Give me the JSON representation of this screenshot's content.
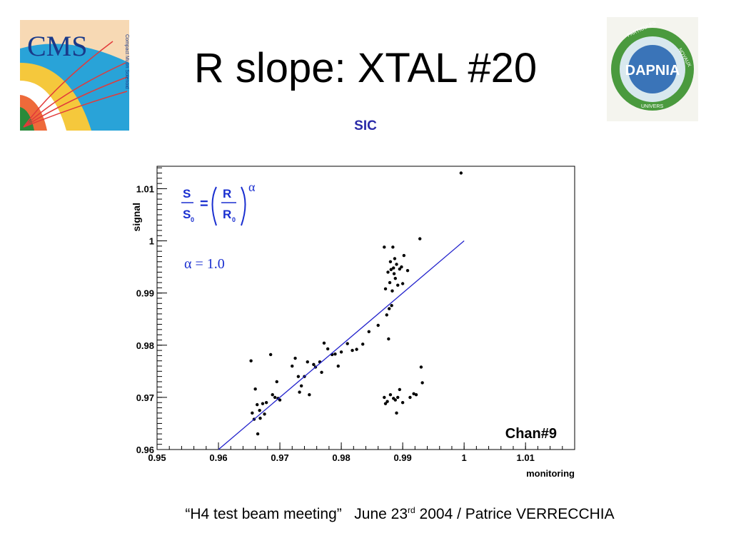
{
  "slide": {
    "title": "R slope: XTAL #20",
    "subtitle": "SIC",
    "footer_quote": "“H4 test beam meeting”",
    "footer_date_day": "June 23",
    "footer_date_sup": "rd",
    "footer_rest": " 2004 / Patrice VERRECCHIA"
  },
  "logos": {
    "cms": {
      "text": "CMS",
      "subtext": "Compact Muon Solenoid"
    },
    "dapnia": {
      "text": "DAPNIA",
      "ring_top": "PARTICULES",
      "ring_right": "NOYAUX",
      "ring_bottom": "UNIVERS"
    }
  },
  "chart_data": {
    "type": "scatter",
    "xlabel": "monitoring",
    "ylabel": "signal",
    "xlim": [
      0.95,
      1.018
    ],
    "ylim": [
      0.96,
      1.0143
    ],
    "xticks": [
      0.95,
      0.96,
      0.97,
      0.98,
      0.99,
      1,
      1.01
    ],
    "xtick_labels": [
      "0.95",
      "0.96",
      "0.97",
      "0.98",
      "0.99",
      "1",
      "1.01"
    ],
    "yticks": [
      0.96,
      0.97,
      0.98,
      0.99,
      1,
      1.01
    ],
    "ytick_labels": [
      "0.96",
      "0.97",
      "0.98",
      "0.99",
      "1",
      "1.01"
    ],
    "grid": false,
    "annotation_channel": "Chan#9",
    "formula": {
      "S": "S",
      "S0": "S",
      "R": "R",
      "R0": "R",
      "sub0": "0",
      "eq": "=",
      "alpha": "α"
    },
    "alpha_value_text": "α = 1.0",
    "fit_line": {
      "x": [
        0.96,
        1.0
      ],
      "y": [
        0.96,
        1.0
      ],
      "color": "#2222cc"
    },
    "points": [
      [
        0.9653,
        0.977
      ],
      [
        0.9655,
        0.967
      ],
      [
        0.9658,
        0.9658
      ],
      [
        0.966,
        0.9716
      ],
      [
        0.9663,
        0.9686
      ],
      [
        0.9664,
        0.963
      ],
      [
        0.9667,
        0.9675
      ],
      [
        0.9668,
        0.966
      ],
      [
        0.9672,
        0.9688
      ],
      [
        0.9675,
        0.9668
      ],
      [
        0.9678,
        0.969
      ],
      [
        0.9685,
        0.9782
      ],
      [
        0.9688,
        0.9705
      ],
      [
        0.9692,
        0.97
      ],
      [
        0.9695,
        0.973
      ],
      [
        0.9697,
        0.9698
      ],
      [
        0.97,
        0.9695
      ],
      [
        0.972,
        0.976
      ],
      [
        0.9725,
        0.9775
      ],
      [
        0.973,
        0.974
      ],
      [
        0.9732,
        0.971
      ],
      [
        0.9735,
        0.9722
      ],
      [
        0.974,
        0.974
      ],
      [
        0.9745,
        0.9768
      ],
      [
        0.9748,
        0.9705
      ],
      [
        0.9755,
        0.9763
      ],
      [
        0.9758,
        0.9758
      ],
      [
        0.9765,
        0.9768
      ],
      [
        0.9768,
        0.9748
      ],
      [
        0.9772,
        0.9804
      ],
      [
        0.9778,
        0.9793
      ],
      [
        0.9785,
        0.9782
      ],
      [
        0.979,
        0.9783
      ],
      [
        0.9795,
        0.976
      ],
      [
        0.98,
        0.9787
      ],
      [
        0.981,
        0.9803
      ],
      [
        0.9818,
        0.979
      ],
      [
        0.9825,
        0.9792
      ],
      [
        0.9835,
        0.9802
      ],
      [
        0.9845,
        0.9826
      ],
      [
        0.986,
        0.9838
      ],
      [
        0.987,
        0.9988
      ],
      [
        0.9872,
        0.9908
      ],
      [
        0.9874,
        0.9858
      ],
      [
        0.9876,
        0.994
      ],
      [
        0.9877,
        0.9812
      ],
      [
        0.9878,
        0.987
      ],
      [
        0.9879,
        0.992
      ],
      [
        0.988,
        0.996
      ],
      [
        0.9881,
        0.9945
      ],
      [
        0.9882,
        0.9876
      ],
      [
        0.9883,
        0.9904
      ],
      [
        0.9884,
        0.9988
      ],
      [
        0.9885,
        0.9948
      ],
      [
        0.9886,
        0.9937
      ],
      [
        0.9887,
        0.9966
      ],
      [
        0.9888,
        0.9928
      ],
      [
        0.989,
        0.9955
      ],
      [
        0.9892,
        0.9915
      ],
      [
        0.9895,
        0.9946
      ],
      [
        0.9898,
        0.995
      ],
      [
        0.99,
        0.9918
      ],
      [
        0.9902,
        0.9972
      ],
      [
        0.9908,
        0.9943
      ],
      [
        0.987,
        0.97
      ],
      [
        0.9872,
        0.9688
      ],
      [
        0.9875,
        0.9692
      ],
      [
        0.988,
        0.9705
      ],
      [
        0.9885,
        0.9698
      ],
      [
        0.9888,
        0.9695
      ],
      [
        0.989,
        0.967
      ],
      [
        0.9892,
        0.97
      ],
      [
        0.9895,
        0.9715
      ],
      [
        0.99,
        0.969
      ],
      [
        0.9912,
        0.97
      ],
      [
        0.9918,
        0.9707
      ],
      [
        0.9922,
        0.9705
      ],
      [
        0.993,
        0.9758
      ],
      [
        0.9932,
        0.9728
      ],
      [
        0.9928,
        1.0004
      ],
      [
        0.9995,
        1.013
      ]
    ]
  }
}
